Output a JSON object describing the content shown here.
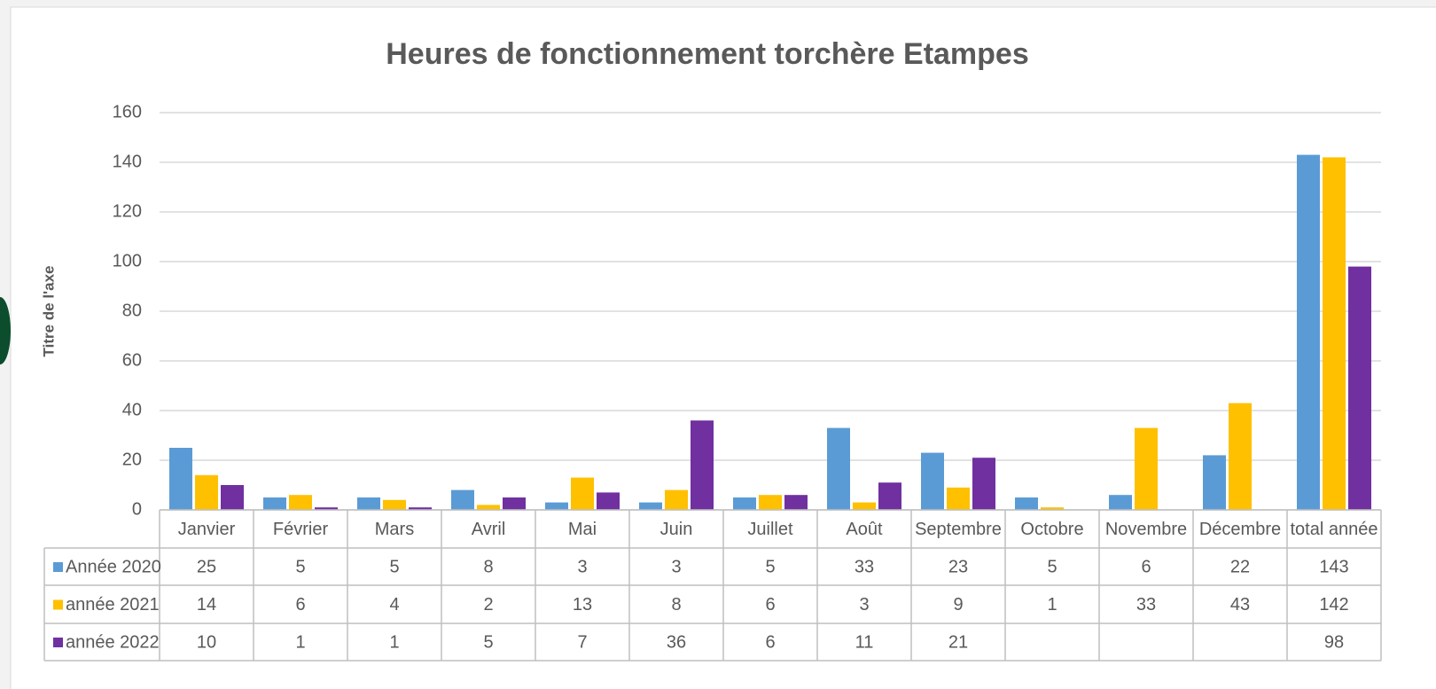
{
  "chart_data": {
    "type": "bar",
    "title": "Heures de fonctionnement torchère Etampes",
    "y_axis_label": "Titre de l'axe",
    "categories": [
      "Janvier",
      "Février",
      "Mars",
      "Avril",
      "Mai",
      "Juin",
      "Juillet",
      "Août",
      "Septembre",
      "Octobre",
      "Novembre",
      "Décembre",
      "total année"
    ],
    "series": [
      {
        "name": "Année 2020",
        "color": "#5b9bd5",
        "values": [
          25,
          5,
          5,
          8,
          3,
          3,
          5,
          33,
          23,
          5,
          6,
          22,
          143
        ]
      },
      {
        "name": "année 2021",
        "color": "#ffc000",
        "values": [
          14,
          6,
          4,
          2,
          13,
          8,
          6,
          3,
          9,
          1,
          33,
          43,
          142
        ]
      },
      {
        "name": "année 2022",
        "color": "#7030a0",
        "values": [
          10,
          1,
          1,
          5,
          7,
          36,
          6,
          11,
          21,
          null,
          null,
          null,
          98
        ]
      }
    ],
    "ylim": [
      0,
      160
    ],
    "yticks": [
      0,
      20,
      40,
      60,
      80,
      100,
      120,
      140,
      160
    ],
    "grid": true
  }
}
